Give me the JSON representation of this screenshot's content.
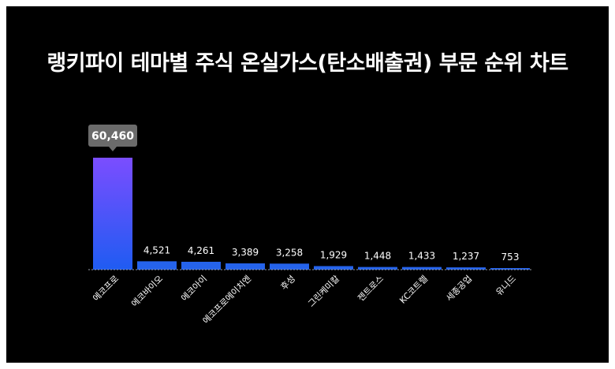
{
  "title": "랭키파이 테마별 주식 온실가스(탄소배출권) 부문 순위 차트",
  "colors": {
    "background": "#000000",
    "bar_top": "#7b4dff",
    "bar_bottom": "#1f5cf2",
    "bar": "#2563eb",
    "tooltip": "#6b6b6b",
    "text": "#ffffff"
  },
  "chart_data": {
    "type": "bar",
    "title": "랭키파이 테마별 주식 온실가스(탄소배출권) 부문 순위 차트",
    "categories": [
      "에코프로",
      "에코바이오",
      "에코아이",
      "에코프로에이치엔",
      "후성",
      "그린케미칼",
      "젠트로스",
      "KC코트렐",
      "세종공업",
      "유니드"
    ],
    "values": [
      60460,
      4521,
      4261,
      3389,
      3258,
      1929,
      1448,
      1433,
      1237,
      753
    ],
    "value_labels": [
      "60,460",
      "4,521",
      "4,261",
      "3,389",
      "3,258",
      "1,929",
      "1,448",
      "1,433",
      "1,237",
      "753"
    ],
    "highlighted_index": 0,
    "xlabel": "",
    "ylabel": "",
    "ylim": [
      0,
      60460
    ],
    "grid": false,
    "legend": "none"
  }
}
